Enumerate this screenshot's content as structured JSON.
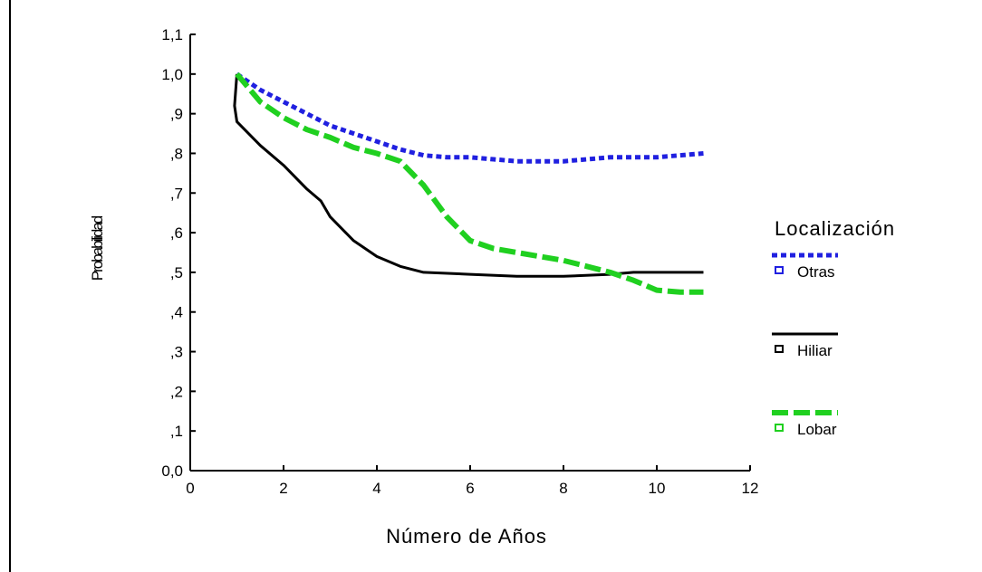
{
  "chart_data": {
    "type": "line",
    "title": "",
    "xlabel": "Número de Años",
    "ylabel": "Probabilidad",
    "xlim": [
      0,
      12
    ],
    "ylim": [
      0,
      1.1
    ],
    "x_ticks": [
      0,
      2,
      4,
      6,
      8,
      10,
      12
    ],
    "x_tick_labels": [
      "0",
      "2",
      "4",
      "6",
      "8",
      "10",
      "12"
    ],
    "y_ticks": [
      0,
      0.1,
      0.2,
      0.3,
      0.4,
      0.5,
      0.6,
      0.7,
      0.8,
      0.9,
      1.0,
      1.1
    ],
    "y_tick_labels": [
      "0,0",
      ",1",
      ",2",
      ",3",
      ",4",
      ",5",
      ",6",
      ",7",
      ",8",
      ",9",
      "1,0",
      "1,1"
    ],
    "grid": false,
    "legend": {
      "title": "Localización",
      "position": "right"
    },
    "series": [
      {
        "name": "Otras",
        "color": "#2020e0",
        "style": "dotted",
        "points": [
          [
            1.0,
            1.0
          ],
          [
            1.5,
            0.96
          ],
          [
            2.0,
            0.93
          ],
          [
            2.5,
            0.9
          ],
          [
            3.0,
            0.87
          ],
          [
            3.5,
            0.85
          ],
          [
            4.0,
            0.83
          ],
          [
            4.5,
            0.81
          ],
          [
            5.0,
            0.795
          ],
          [
            5.5,
            0.79
          ],
          [
            6.0,
            0.79
          ],
          [
            6.5,
            0.785
          ],
          [
            7.0,
            0.78
          ],
          [
            7.5,
            0.78
          ],
          [
            8.0,
            0.78
          ],
          [
            8.5,
            0.785
          ],
          [
            9.0,
            0.79
          ],
          [
            9.5,
            0.79
          ],
          [
            10.0,
            0.79
          ],
          [
            10.5,
            0.795
          ],
          [
            11.0,
            0.8
          ]
        ]
      },
      {
        "name": "Hiliar",
        "color": "#000000",
        "style": "solid",
        "points": [
          [
            1.0,
            1.0
          ],
          [
            0.95,
            0.92
          ],
          [
            1.0,
            0.88
          ],
          [
            1.5,
            0.82
          ],
          [
            2.0,
            0.77
          ],
          [
            2.5,
            0.71
          ],
          [
            2.8,
            0.68
          ],
          [
            3.0,
            0.64
          ],
          [
            3.5,
            0.58
          ],
          [
            4.0,
            0.54
          ],
          [
            4.5,
            0.515
          ],
          [
            5.0,
            0.5
          ],
          [
            6.0,
            0.495
          ],
          [
            7.0,
            0.49
          ],
          [
            8.0,
            0.49
          ],
          [
            9.0,
            0.495
          ],
          [
            9.5,
            0.5
          ],
          [
            10.0,
            0.5
          ],
          [
            11.0,
            0.5
          ]
        ]
      },
      {
        "name": "Lobar",
        "color": "#20d020",
        "style": "dashed",
        "points": [
          [
            1.0,
            1.0
          ],
          [
            1.5,
            0.93
          ],
          [
            2.0,
            0.89
          ],
          [
            2.5,
            0.86
          ],
          [
            3.0,
            0.84
          ],
          [
            3.5,
            0.815
          ],
          [
            4.0,
            0.8
          ],
          [
            4.5,
            0.78
          ],
          [
            5.0,
            0.72
          ],
          [
            5.5,
            0.64
          ],
          [
            6.0,
            0.58
          ],
          [
            6.5,
            0.56
          ],
          [
            7.0,
            0.55
          ],
          [
            7.5,
            0.54
          ],
          [
            8.0,
            0.53
          ],
          [
            8.5,
            0.515
          ],
          [
            9.0,
            0.5
          ],
          [
            9.5,
            0.48
          ],
          [
            10.0,
            0.455
          ],
          [
            10.5,
            0.45
          ],
          [
            11.0,
            0.45
          ]
        ]
      }
    ]
  }
}
